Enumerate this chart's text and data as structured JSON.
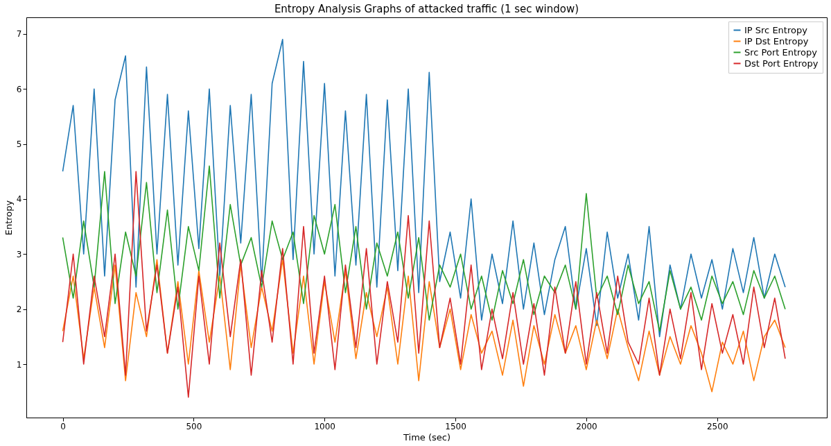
{
  "chart_data": {
    "type": "line",
    "title": "Entropy Analysis Graphs of attacked traffic (1 sec window)",
    "xlabel": "Time (sec)",
    "ylabel": "Entropy",
    "x": [
      0,
      40,
      80,
      120,
      160,
      200,
      240,
      280,
      320,
      360,
      400,
      440,
      480,
      520,
      560,
      600,
      640,
      680,
      720,
      760,
      800,
      840,
      880,
      920,
      960,
      1000,
      1040,
      1080,
      1120,
      1160,
      1200,
      1240,
      1280,
      1320,
      1360,
      1400,
      1440,
      1480,
      1520,
      1560,
      1600,
      1640,
      1680,
      1720,
      1760,
      1800,
      1840,
      1880,
      1920,
      1960,
      2000,
      2040,
      2080,
      2120,
      2160,
      2200,
      2240,
      2280,
      2320,
      2360,
      2400,
      2440,
      2480,
      2520,
      2560,
      2600,
      2640,
      2680,
      2720,
      2760
    ],
    "series": [
      {
        "name": "IP Src Entropy",
        "color": "#1f77b4",
        "values": [
          4.5,
          5.7,
          3.0,
          6.0,
          2.6,
          5.8,
          6.6,
          2.4,
          6.4,
          3.0,
          5.9,
          2.8,
          5.6,
          3.1,
          6.0,
          2.6,
          5.7,
          3.2,
          5.9,
          2.5,
          6.1,
          6.9,
          2.9,
          6.5,
          3.0,
          6.1,
          2.6,
          5.6,
          2.8,
          5.9,
          2.4,
          5.8,
          2.7,
          6.0,
          2.3,
          6.3,
          2.5,
          3.4,
          2.2,
          4.0,
          1.8,
          3.0,
          2.1,
          3.6,
          2.0,
          3.2,
          1.9,
          2.9,
          3.5,
          2.0,
          3.1,
          1.7,
          3.4,
          2.2,
          3.0,
          1.8,
          3.5,
          1.5,
          2.8,
          2.0,
          3.0,
          2.2,
          2.9,
          2.0,
          3.1,
          2.3,
          3.3,
          2.2,
          3.0,
          2.4
        ]
      },
      {
        "name": "IP Dst Entropy",
        "color": "#ff7f0e",
        "values": [
          1.6,
          2.6,
          1.1,
          2.4,
          1.3,
          2.8,
          0.7,
          2.3,
          1.5,
          2.9,
          1.2,
          2.5,
          1.0,
          2.7,
          1.4,
          2.6,
          0.9,
          2.8,
          1.3,
          2.4,
          1.6,
          2.9,
          1.2,
          2.6,
          1.0,
          2.5,
          1.4,
          2.7,
          1.1,
          2.3,
          1.5,
          2.4,
          1.0,
          2.6,
          0.7,
          2.5,
          1.3,
          2.0,
          0.9,
          1.9,
          1.2,
          1.6,
          0.8,
          1.8,
          0.6,
          1.7,
          1.0,
          1.9,
          1.2,
          1.7,
          0.9,
          1.8,
          1.1,
          2.0,
          1.3,
          0.7,
          1.6,
          0.8,
          1.5,
          1.0,
          1.7,
          1.2,
          0.5,
          1.4,
          1.0,
          1.6,
          0.7,
          1.5,
          1.8,
          1.3
        ]
      },
      {
        "name": "Src Port Entropy",
        "color": "#2ca02c",
        "values": [
          3.3,
          2.2,
          3.6,
          2.4,
          4.5,
          2.1,
          3.4,
          2.6,
          4.3,
          2.3,
          3.8,
          2.0,
          3.5,
          2.7,
          4.6,
          2.2,
          3.9,
          2.8,
          3.3,
          2.4,
          3.6,
          2.9,
          3.4,
          2.1,
          3.7,
          3.0,
          3.9,
          2.3,
          3.5,
          2.0,
          3.2,
          2.6,
          3.4,
          2.2,
          3.3,
          1.8,
          2.8,
          2.4,
          3.0,
          2.0,
          2.6,
          1.8,
          2.7,
          2.1,
          2.9,
          1.9,
          2.6,
          2.3,
          2.8,
          2.0,
          4.1,
          2.2,
          2.6,
          1.9,
          2.8,
          2.1,
          2.5,
          1.6,
          2.7,
          2.0,
          2.4,
          1.8,
          2.6,
          2.1,
          2.5,
          1.9,
          2.7,
          2.2,
          2.6,
          2.0
        ]
      },
      {
        "name": "Dst Port Entropy",
        "color": "#d62728",
        "values": [
          1.4,
          3.0,
          1.0,
          2.6,
          1.5,
          3.0,
          0.8,
          4.5,
          1.6,
          2.8,
          1.2,
          2.4,
          0.4,
          2.6,
          1.0,
          3.2,
          1.5,
          2.9,
          0.8,
          2.7,
          1.4,
          3.1,
          1.0,
          3.5,
          1.2,
          2.6,
          0.9,
          2.8,
          1.3,
          3.1,
          1.0,
          2.5,
          1.4,
          3.7,
          1.2,
          3.6,
          1.3,
          2.2,
          1.0,
          2.8,
          0.9,
          2.0,
          1.1,
          2.3,
          1.0,
          2.1,
          0.8,
          2.4,
          1.2,
          2.5,
          1.0,
          2.3,
          1.2,
          2.6,
          1.4,
          1.0,
          2.2,
          0.8,
          2.0,
          1.1,
          2.3,
          0.9,
          2.1,
          1.2,
          1.9,
          1.0,
          2.4,
          1.3,
          2.2,
          1.1
        ]
      }
    ],
    "xlim": [
      -139,
      2919
    ],
    "xticks": [
      0,
      500,
      1000,
      1500,
      2000,
      2500
    ],
    "ylim": [
      0.03,
      7.3
    ],
    "yticks": [
      1,
      2,
      3,
      4,
      5,
      6,
      7
    ],
    "legend": "top right"
  }
}
